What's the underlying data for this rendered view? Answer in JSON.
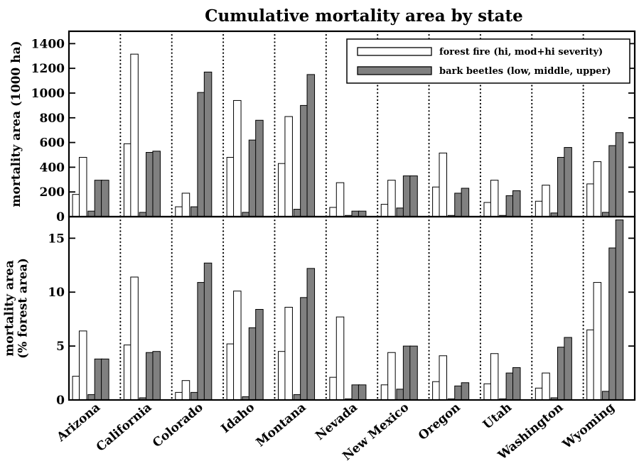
{
  "chart_data": {
    "type": "bar",
    "title": "Cumulative mortality area by state",
    "categories": [
      "Arizona",
      "California",
      "Colorado",
      "Idaho",
      "Montana",
      "Nevada",
      "New Mexico",
      "Oregon",
      "Utah",
      "Washington",
      "Wyoming"
    ],
    "legend": {
      "placement": "top-right",
      "entries": [
        {
          "label": "forest fire (hi, mod+hi severity)",
          "color": "#ffffff"
        },
        {
          "label": "bark beetles (low, middle, upper)",
          "color": "#808080"
        }
      ]
    },
    "bar_group": {
      "fire_color": "#ffffff",
      "beetle_color": "#808080",
      "edge_color": "#000000"
    },
    "panels": [
      {
        "ylabel": [
          "mortality area (1000 ha)"
        ],
        "ylim": [
          0,
          1500
        ],
        "yticks": [
          0,
          200,
          400,
          600,
          800,
          1000,
          1200,
          1400
        ],
        "series": [
          {
            "name": "forest fire (hi, mod+hi severity)",
            "group": "fire",
            "values": [
              [
                180,
                480
              ],
              [
                590,
                1315
              ],
              [
                80,
                190
              ],
              [
                480,
                940
              ],
              [
                430,
                810
              ],
              [
                75,
                275
              ],
              [
                100,
                295
              ],
              [
                240,
                515
              ],
              [
                115,
                295
              ],
              [
                125,
                255
              ],
              [
                265,
                445
              ]
            ]
          },
          {
            "name": "bark beetles (low, middle, upper)",
            "group": "beetle",
            "values": [
              [
                45,
                295,
                295
              ],
              [
                35,
                520,
                530
              ],
              [
                80,
                1005,
                1170
              ],
              [
                35,
                620,
                780
              ],
              [
                60,
                900,
                1150
              ],
              [
                10,
                45,
                45
              ],
              [
                70,
                330,
                330
              ],
              [
                10,
                190,
                230
              ],
              [
                10,
                170,
                210
              ],
              [
                30,
                480,
                560
              ],
              [
                35,
                575,
                680
              ]
            ]
          }
        ]
      },
      {
        "ylabel": [
          "mortality area",
          "(% forest area)"
        ],
        "ylim": [
          0,
          17
        ],
        "yticks": [
          0,
          5,
          10,
          15
        ],
        "series": [
          {
            "name": "forest fire (hi, mod+hi severity)",
            "group": "fire",
            "values": [
              [
                2.2,
                6.4
              ],
              [
                5.1,
                11.4
              ],
              [
                0.7,
                1.8
              ],
              [
                5.2,
                10.1
              ],
              [
                4.5,
                8.6
              ],
              [
                2.1,
                7.7
              ],
              [
                1.4,
                4.4
              ],
              [
                1.7,
                4.1
              ],
              [
                1.5,
                4.3
              ],
              [
                1.1,
                2.5
              ],
              [
                6.5,
                10.9
              ]
            ]
          },
          {
            "name": "bark beetles (low, middle, upper)",
            "group": "beetle",
            "values": [
              [
                0.5,
                3.8,
                3.8
              ],
              [
                0.2,
                4.4,
                4.5
              ],
              [
                0.7,
                10.9,
                12.7
              ],
              [
                0.3,
                6.7,
                8.4
              ],
              [
                0.5,
                9.5,
                12.2
              ],
              [
                0.1,
                1.4,
                1.4
              ],
              [
                1.0,
                5.0,
                5.0
              ],
              [
                0.1,
                1.3,
                1.6
              ],
              [
                0.1,
                2.5,
                3.0
              ],
              [
                0.2,
                4.9,
                5.8
              ],
              [
                0.8,
                14.1,
                16.7
              ]
            ]
          }
        ]
      }
    ],
    "grid": false,
    "separators": "dotted"
  }
}
